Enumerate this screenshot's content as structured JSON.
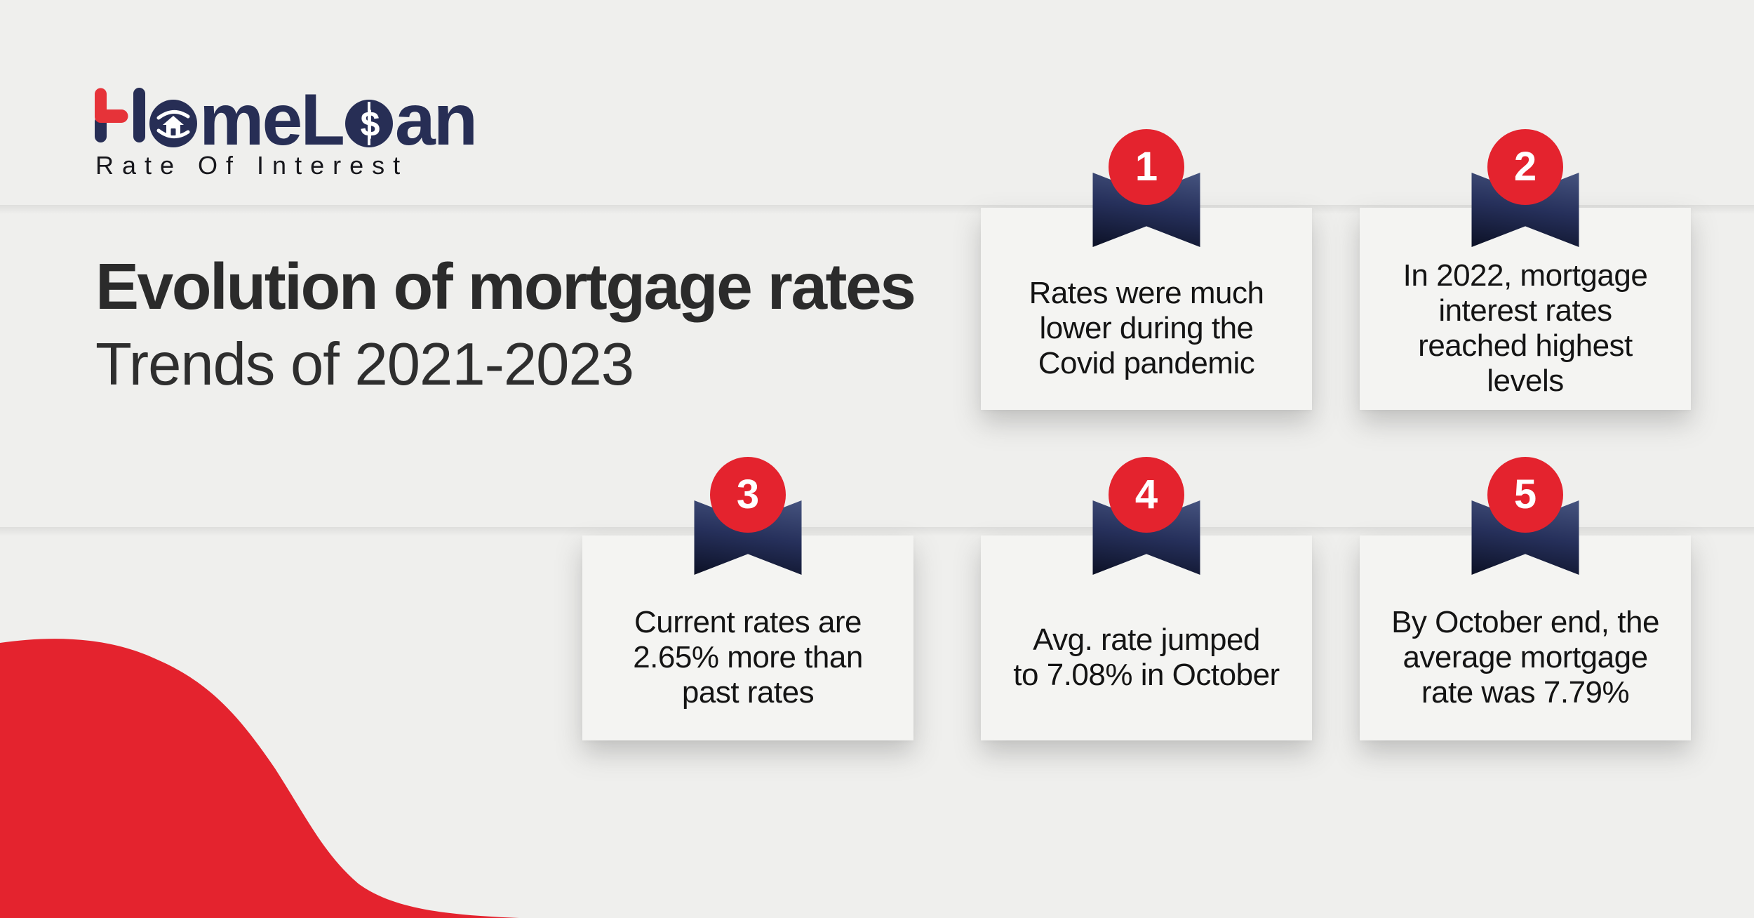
{
  "logo": {
    "segment_h": "H",
    "segment_me": "me",
    "segment_l": "L",
    "segment_an": "an",
    "tagline": "Rate Of Interest"
  },
  "title": {
    "line1": "Evolution of mortgage rates",
    "line2": "Trends of 2021-2023"
  },
  "cards": [
    {
      "number": "1",
      "lines": [
        "Rates were much",
        "lower during the",
        "Covid pandemic"
      ]
    },
    {
      "number": "2",
      "lines": [
        "In 2022, mortgage",
        "interest rates",
        "reached highest",
        "levels"
      ]
    },
    {
      "number": "3",
      "lines": [
        "Current rates are",
        "2.65% more than",
        "past rates"
      ]
    },
    {
      "number": "4",
      "lines": [
        "Avg. rate jumped",
        "to 7.08% in October"
      ]
    },
    {
      "number": "5",
      "lines": [
        "By October end, the",
        "average mortgage",
        "rate was 7.79%"
      ]
    }
  ],
  "colors": {
    "background": "#efefed",
    "card": "#f4f4f2",
    "red": "#e4232e",
    "navy": "#272e55",
    "ribbon_gradient_top": "#46547f",
    "ribbon_gradient_bottom": "#0c1126",
    "title_text": "#2b2b2b",
    "body_text": "#141414",
    "badge_number_text": "#ffffff"
  },
  "icons": {
    "logo_letter_h": "stylized-h-red-navy",
    "logo_o_home": "hands-holding-house",
    "logo_o_loan": "dollar-coin",
    "card_marker": "bookmark-ribbon",
    "decoration": "red-wave"
  }
}
